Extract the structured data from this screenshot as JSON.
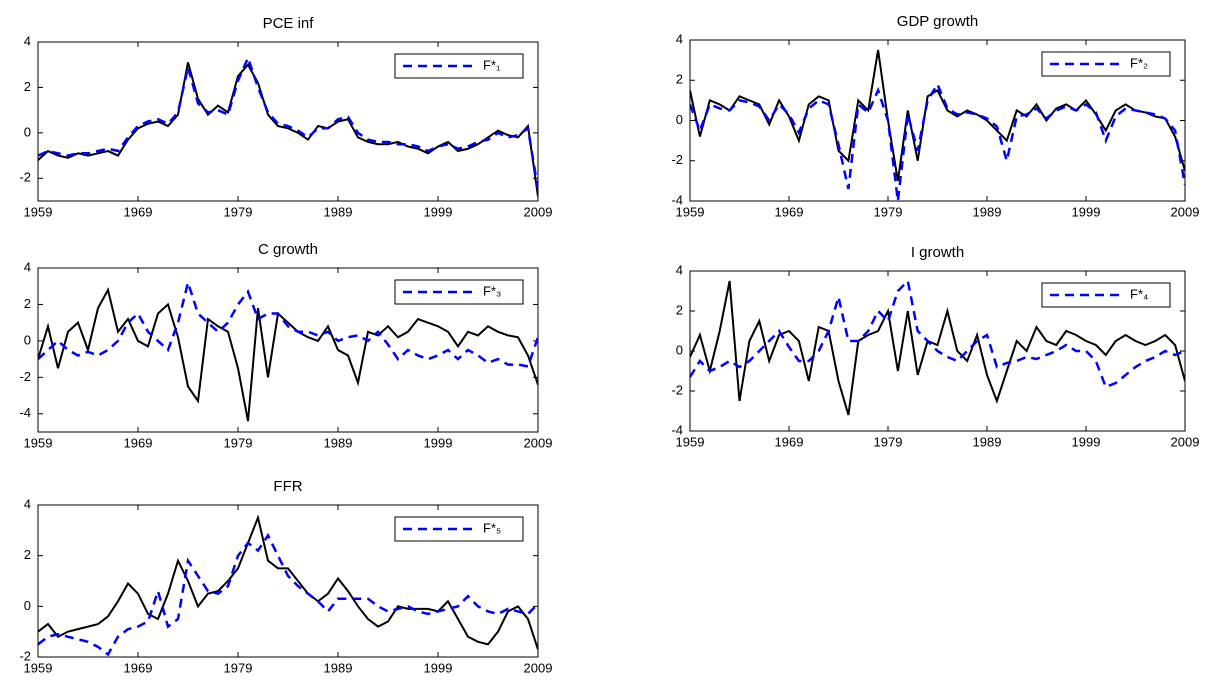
{
  "chart_data": [
    {
      "type": "line",
      "title": "PCE inf",
      "legend": "upper right",
      "x": [
        1959,
        1960,
        1961,
        1962,
        1963,
        1964,
        1965,
        1966,
        1967,
        1968,
        1969,
        1970,
        1971,
        1972,
        1973,
        1974,
        1975,
        1976,
        1977,
        1978,
        1979,
        1980,
        1981,
        1982,
        1983,
        1984,
        1985,
        1986,
        1987,
        1988,
        1989,
        1990,
        1991,
        1992,
        1993,
        1994,
        1995,
        1996,
        1997,
        1998,
        1999,
        2000,
        2001,
        2002,
        2003,
        2004,
        2005,
        2006,
        2007,
        2008,
        2009
      ],
      "series": [
        {
          "color": "#000000",
          "values": [
            -1.2,
            -0.8,
            -1.0,
            -1.1,
            -0.9,
            -1.0,
            -0.9,
            -0.8,
            -1.0,
            -0.3,
            0.2,
            0.4,
            0.5,
            0.3,
            0.8,
            3.1,
            1.5,
            0.8,
            1.2,
            0.9,
            2.5,
            3.0,
            2.2,
            0.8,
            0.3,
            0.2,
            0.0,
            -0.3,
            0.3,
            0.2,
            0.5,
            0.6,
            -0.2,
            -0.4,
            -0.5,
            -0.5,
            -0.4,
            -0.6,
            -0.7,
            -0.9,
            -0.6,
            -0.4,
            -0.8,
            -0.7,
            -0.5,
            -0.2,
            0.1,
            -0.1,
            -0.2,
            0.3,
            -2.8
          ]
        },
        {
          "name": "F*₁",
          "color": "#0000ff",
          "dashed": true,
          "values": [
            -1.0,
            -0.8,
            -0.9,
            -1.0,
            -0.9,
            -0.9,
            -0.8,
            -0.7,
            -0.8,
            -0.2,
            0.3,
            0.5,
            0.6,
            0.4,
            0.9,
            2.9,
            1.3,
            0.9,
            1.0,
            0.8,
            2.3,
            3.3,
            2.0,
            0.9,
            0.4,
            0.3,
            0.1,
            -0.2,
            0.2,
            0.2,
            0.6,
            0.7,
            0.0,
            -0.3,
            -0.4,
            -0.4,
            -0.5,
            -0.5,
            -0.6,
            -0.8,
            -0.6,
            -0.5,
            -0.7,
            -0.6,
            -0.4,
            -0.3,
            0.0,
            -0.2,
            -0.1,
            0.2,
            -2.5
          ]
        }
      ],
      "xlim": [
        1959,
        2009
      ],
      "ylim": [
        -3,
        4
      ],
      "xticks": [
        1959,
        1969,
        1979,
        1989,
        1999,
        2009
      ],
      "yticks": [
        -2,
        0,
        2,
        4
      ]
    },
    {
      "type": "line",
      "title": "GDP growth",
      "legend": "upper right",
      "x": [
        1959,
        1960,
        1961,
        1962,
        1963,
        1964,
        1965,
        1966,
        1967,
        1968,
        1969,
        1970,
        1971,
        1972,
        1973,
        1974,
        1975,
        1976,
        1977,
        1978,
        1979,
        1980,
        1981,
        1982,
        1983,
        1984,
        1985,
        1986,
        1987,
        1988,
        1989,
        1990,
        1991,
        1992,
        1993,
        1994,
        1995,
        1996,
        1997,
        1998,
        1999,
        2000,
        2001,
        2002,
        2003,
        2004,
        2005,
        2006,
        2007,
        2008,
        2009
      ],
      "series": [
        {
          "color": "#000000",
          "values": [
            1.5,
            -0.8,
            1.0,
            0.8,
            0.5,
            1.2,
            1.0,
            0.8,
            -0.2,
            1.0,
            0.2,
            -1.0,
            0.8,
            1.2,
            1.0,
            -1.5,
            -2.0,
            1.0,
            0.5,
            3.5,
            0.0,
            -3.0,
            0.5,
            -2.0,
            1.2,
            1.5,
            0.5,
            0.2,
            0.5,
            0.3,
            0.0,
            -0.5,
            -1.0,
            0.5,
            0.2,
            0.8,
            0.0,
            0.6,
            0.8,
            0.5,
            1.0,
            0.3,
            -0.5,
            0.5,
            0.8,
            0.5,
            0.4,
            0.2,
            0.1,
            -0.8,
            -2.5
          ]
        },
        {
          "name": "F*₂",
          "color": "#0000ff",
          "dashed": true,
          "values": [
            0.8,
            -0.5,
            0.8,
            0.6,
            0.5,
            1.0,
            0.9,
            0.7,
            0.0,
            0.8,
            0.3,
            -0.6,
            0.6,
            1.0,
            0.8,
            -1.2,
            -3.4,
            0.8,
            0.4,
            1.5,
            0.0,
            -4.0,
            0.3,
            -1.5,
            1.0,
            1.8,
            0.6,
            0.3,
            0.4,
            0.3,
            0.1,
            -0.3,
            -2.0,
            0.2,
            0.3,
            0.6,
            0.1,
            0.5,
            0.7,
            0.5,
            0.8,
            0.4,
            -1.0,
            0.2,
            0.6,
            0.5,
            0.4,
            0.3,
            0.1,
            -0.5,
            -3.2
          ]
        }
      ],
      "xlim": [
        1959,
        2009
      ],
      "ylim": [
        -4,
        4
      ],
      "xticks": [
        1959,
        1969,
        1979,
        1989,
        1999,
        2009
      ],
      "yticks": [
        -4,
        -2,
        0,
        2,
        4
      ]
    },
    {
      "type": "line",
      "title": "C growth",
      "legend": "upper right",
      "x": [
        1959,
        1960,
        1961,
        1962,
        1963,
        1964,
        1965,
        1966,
        1967,
        1968,
        1969,
        1970,
        1971,
        1972,
        1973,
        1974,
        1975,
        1976,
        1977,
        1978,
        1979,
        1980,
        1981,
        1982,
        1983,
        1984,
        1985,
        1986,
        1987,
        1988,
        1989,
        1990,
        1991,
        1992,
        1993,
        1994,
        1995,
        1996,
        1997,
        1998,
        1999,
        2000,
        2001,
        2002,
        2003,
        2004,
        2005,
        2006,
        2007,
        2008,
        2009
      ],
      "series": [
        {
          "color": "#000000",
          "values": [
            -1.0,
            0.8,
            -1.5,
            0.5,
            1.0,
            -0.5,
            1.8,
            2.8,
            0.5,
            1.2,
            0.0,
            -0.3,
            1.5,
            2.0,
            0.2,
            -2.5,
            -3.3,
            1.2,
            0.8,
            0.5,
            -1.5,
            -4.4,
            1.8,
            -2.0,
            1.5,
            1.0,
            0.5,
            0.2,
            0.0,
            0.8,
            -0.5,
            -0.8,
            -2.3,
            0.5,
            0.3,
            0.8,
            0.2,
            0.5,
            1.2,
            1.0,
            0.8,
            0.5,
            -0.3,
            0.5,
            0.3,
            0.8,
            0.5,
            0.3,
            0.2,
            -0.8,
            -2.4
          ]
        },
        {
          "name": "F*₃",
          "color": "#0000ff",
          "dashed": true,
          "values": [
            -1.0,
            -0.5,
            0.0,
            -0.5,
            -0.8,
            -0.6,
            -0.8,
            -0.5,
            0.0,
            1.0,
            1.5,
            0.5,
            0.0,
            -0.5,
            1.0,
            3.2,
            1.5,
            1.0,
            0.5,
            1.0,
            2.0,
            2.7,
            1.2,
            1.5,
            1.5,
            0.8,
            0.5,
            0.5,
            0.3,
            0.5,
            0.0,
            0.2,
            0.3,
            0.0,
            0.5,
            -0.2,
            -1.0,
            -0.5,
            -0.8,
            -1.0,
            -0.8,
            -0.5,
            -1.0,
            -0.5,
            -0.8,
            -1.2,
            -1.0,
            -1.3,
            -1.3,
            -1.4,
            0.2
          ]
        }
      ],
      "xlim": [
        1959,
        2009
      ],
      "ylim": [
        -5,
        4
      ],
      "xticks": [
        1959,
        1969,
        1979,
        1989,
        1999,
        2009
      ],
      "yticks": [
        -4,
        -2,
        0,
        2,
        4
      ]
    },
    {
      "type": "line",
      "title": "I growth",
      "legend": "upper right",
      "x": [
        1959,
        1960,
        1961,
        1962,
        1963,
        1964,
        1965,
        1966,
        1967,
        1968,
        1969,
        1970,
        1971,
        1972,
        1973,
        1974,
        1975,
        1976,
        1977,
        1978,
        1979,
        1980,
        1981,
        1982,
        1983,
        1984,
        1985,
        1986,
        1987,
        1988,
        1989,
        1990,
        1991,
        1992,
        1993,
        1994,
        1995,
        1996,
        1997,
        1998,
        1999,
        2000,
        2001,
        2002,
        2003,
        2004,
        2005,
        2006,
        2007,
        2008,
        2009
      ],
      "series": [
        {
          "color": "#000000",
          "values": [
            -0.3,
            0.8,
            -1.0,
            1.0,
            3.5,
            -2.5,
            0.5,
            1.5,
            -0.5,
            0.8,
            1.0,
            0.5,
            -1.5,
            1.2,
            1.0,
            -1.5,
            -3.2,
            0.5,
            0.8,
            1.0,
            2.0,
            -1.0,
            2.0,
            -1.2,
            0.5,
            0.3,
            2.0,
            0.0,
            -0.5,
            0.8,
            -1.2,
            -2.5,
            -1.0,
            0.5,
            0.0,
            1.2,
            0.5,
            0.3,
            1.0,
            0.8,
            0.5,
            0.3,
            -0.2,
            0.5,
            0.8,
            0.5,
            0.3,
            0.5,
            0.8,
            0.3,
            -1.5
          ]
        },
        {
          "name": "F*₄",
          "color": "#0000ff",
          "dashed": true,
          "values": [
            -1.3,
            -0.5,
            -1.0,
            -0.8,
            -0.5,
            -0.8,
            -0.5,
            0.0,
            0.5,
            1.0,
            0.2,
            -0.5,
            -0.5,
            0.0,
            1.0,
            2.7,
            0.5,
            0.5,
            1.0,
            2.0,
            1.5,
            3.0,
            3.5,
            1.0,
            0.5,
            0.0,
            -0.3,
            -0.5,
            0.0,
            0.5,
            0.8,
            -0.8,
            -0.6,
            -0.5,
            -0.3,
            -0.4,
            -0.2,
            0.0,
            0.3,
            0.0,
            0.0,
            -0.5,
            -1.8,
            -1.6,
            -1.2,
            -0.8,
            -0.5,
            -0.3,
            0.0,
            -0.2,
            0.0
          ]
        }
      ],
      "xlim": [
        1959,
        2009
      ],
      "ylim": [
        -4,
        4
      ],
      "xticks": [
        1959,
        1969,
        1979,
        1989,
        1999,
        2009
      ],
      "yticks": [
        -4,
        -2,
        0,
        2,
        4
      ]
    },
    {
      "type": "line",
      "title": "FFR",
      "legend": "upper right",
      "x": [
        1959,
        1960,
        1961,
        1962,
        1963,
        1964,
        1965,
        1966,
        1967,
        1968,
        1969,
        1970,
        1971,
        1972,
        1973,
        1974,
        1975,
        1976,
        1977,
        1978,
        1979,
        1980,
        1981,
        1982,
        1983,
        1984,
        1985,
        1986,
        1987,
        1988,
        1989,
        1990,
        1991,
        1992,
        1993,
        1994,
        1995,
        1996,
        1997,
        1998,
        1999,
        2000,
        2001,
        2002,
        2003,
        2004,
        2005,
        2006,
        2007,
        2008,
        2009
      ],
      "series": [
        {
          "color": "#000000",
          "values": [
            -1.0,
            -0.7,
            -1.2,
            -1.0,
            -0.9,
            -0.8,
            -0.7,
            -0.4,
            0.2,
            0.9,
            0.5,
            -0.3,
            -0.5,
            0.5,
            1.8,
            1.0,
            0.0,
            0.5,
            0.6,
            1.0,
            1.5,
            2.5,
            3.5,
            1.8,
            1.5,
            1.5,
            1.0,
            0.5,
            0.2,
            0.5,
            1.1,
            0.6,
            0.0,
            -0.5,
            -0.8,
            -0.6,
            0.0,
            -0.1,
            -0.1,
            -0.1,
            -0.2,
            0.2,
            -0.5,
            -1.2,
            -1.4,
            -1.5,
            -1.0,
            -0.2,
            0.0,
            -0.5,
            -1.7
          ]
        },
        {
          "name": "F*₅",
          "color": "#0000ff",
          "dashed": true,
          "values": [
            -1.5,
            -1.2,
            -1.1,
            -1.2,
            -1.3,
            -1.4,
            -1.6,
            -1.9,
            -1.2,
            -0.9,
            -0.8,
            -0.6,
            0.6,
            -0.8,
            -0.5,
            1.8,
            1.2,
            0.6,
            0.5,
            0.8,
            2.0,
            2.5,
            2.2,
            2.8,
            2.0,
            1.2,
            0.8,
            0.5,
            0.2,
            -0.2,
            0.3,
            0.3,
            0.3,
            0.3,
            0.0,
            -0.2,
            -0.1,
            0.0,
            -0.2,
            -0.3,
            -0.2,
            -0.1,
            0.0,
            0.4,
            0.0,
            -0.2,
            -0.3,
            -0.1,
            -0.2,
            -0.3,
            0.1
          ]
        }
      ],
      "xlim": [
        1959,
        2009
      ],
      "ylim": [
        -2,
        4
      ],
      "xticks": [
        1959,
        1969,
        1979,
        1989,
        1999,
        2009
      ],
      "yticks": [
        -2,
        0,
        2,
        4
      ]
    }
  ]
}
